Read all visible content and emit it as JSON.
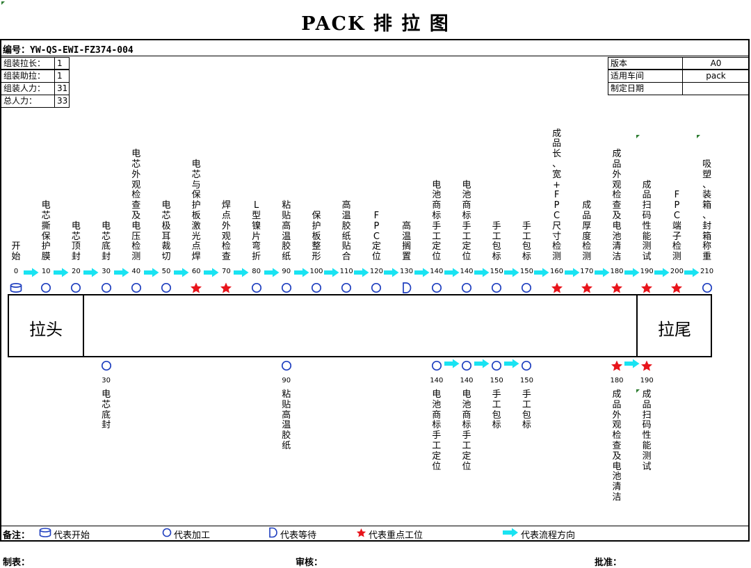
{
  "title": "PACK 排 拉 图",
  "code_label": "编号：",
  "code_value": "YW-QS-EWI-FZ374-004",
  "staff": [
    {
      "label": "组装拉长：",
      "value": "1"
    },
    {
      "label": "组装助拉：",
      "value": "1"
    },
    {
      "label": "组装人力：",
      "value": "31"
    },
    {
      "label": "总人力：",
      "value": "33"
    }
  ],
  "info": [
    {
      "label": "版本",
      "value": "A0"
    },
    {
      "label": "适用车间",
      "value": "pack"
    },
    {
      "label": "制定日期",
      "value": ""
    }
  ],
  "top_stations": [
    {
      "label": "开始",
      "num": "0",
      "symbol": "start"
    },
    {
      "label": "电芯撕保护膜",
      "num": "10",
      "symbol": "process"
    },
    {
      "label": "电芯顶封",
      "num": "20",
      "symbol": "process"
    },
    {
      "label": "电芯底封",
      "num": "30",
      "symbol": "process"
    },
    {
      "label": "电芯外观检查及电压检测",
      "num": "40",
      "symbol": "process"
    },
    {
      "label": "电芯极耳裁切",
      "num": "50",
      "symbol": "process"
    },
    {
      "label": "电芯与保护板激光点焊",
      "num": "60",
      "symbol": "key"
    },
    {
      "label": "焊点外观检查",
      "num": "70",
      "symbol": "key"
    },
    {
      "label": "L型镍片弯折",
      "num": "80",
      "symbol": "process"
    },
    {
      "label": "粘贴高温胶纸",
      "num": "90",
      "symbol": "process"
    },
    {
      "label": "保护板整形",
      "num": "100",
      "symbol": "process"
    },
    {
      "label": "高温胶纸贴合",
      "num": "110",
      "symbol": "process"
    },
    {
      "label": "FPC定位",
      "num": "120",
      "symbol": "process"
    },
    {
      "label": "高温搁置",
      "num": "130",
      "symbol": "wait"
    },
    {
      "label": "电池商标手工定位",
      "num": "140",
      "symbol": "process"
    },
    {
      "label": "电池商标手工定位",
      "num": "140",
      "symbol": "process"
    },
    {
      "label": "手工包标",
      "num": "150",
      "symbol": "process"
    },
    {
      "label": "手工包标",
      "num": "150",
      "symbol": "process"
    },
    {
      "label": "成品长、宽+FPC尺寸检测",
      "num": "160",
      "symbol": "key"
    },
    {
      "label": "成品厚度检测",
      "num": "170",
      "symbol": "key"
    },
    {
      "label": "成品外观检查及电池清洁",
      "num": "180",
      "symbol": "key"
    },
    {
      "label": "成品扫码性能测试",
      "num": "190",
      "symbol": "key"
    },
    {
      "label": "FPC端子检测",
      "num": "200",
      "symbol": "key"
    },
    {
      "label": "吸塑、装箱、封箱称重",
      "num": "210",
      "symbol": "process"
    }
  ],
  "bottom_stations": [
    {
      "label": "电芯底封",
      "num": "30",
      "symbol": "process"
    },
    {
      "label": "粘贴高温胶纸",
      "num": "90",
      "symbol": "process"
    },
    {
      "label": "电池商标手工定位",
      "num": "140",
      "symbol": "process"
    },
    {
      "label": "电池商标手工定位",
      "num": "140",
      "symbol": "process"
    },
    {
      "label": "手工包标",
      "num": "150",
      "symbol": "process"
    },
    {
      "label": "手工包标",
      "num": "150",
      "symbol": "process"
    },
    {
      "label": "成品外观检查及电池清洁",
      "num": "180",
      "symbol": "key"
    },
    {
      "label": "成品扫码性能测试",
      "num": "190",
      "symbol": "key"
    }
  ],
  "line_head": "拉头",
  "line_tail": "拉尾",
  "legend": {
    "title": "备注：",
    "start": "代表开始",
    "process": "代表加工",
    "wait": "代表等待",
    "key": "代表重点工位",
    "flow": "代表流程方向"
  },
  "signatures": {
    "made_by": "制表：",
    "reviewed_by": "审核：",
    "approved_by": "批准："
  },
  "colors": {
    "process_blue": "#1f3fbf",
    "key_red": "#e8141b",
    "arrow_cyan": "#19e3f2",
    "corner_green": "#2e7d32"
  }
}
